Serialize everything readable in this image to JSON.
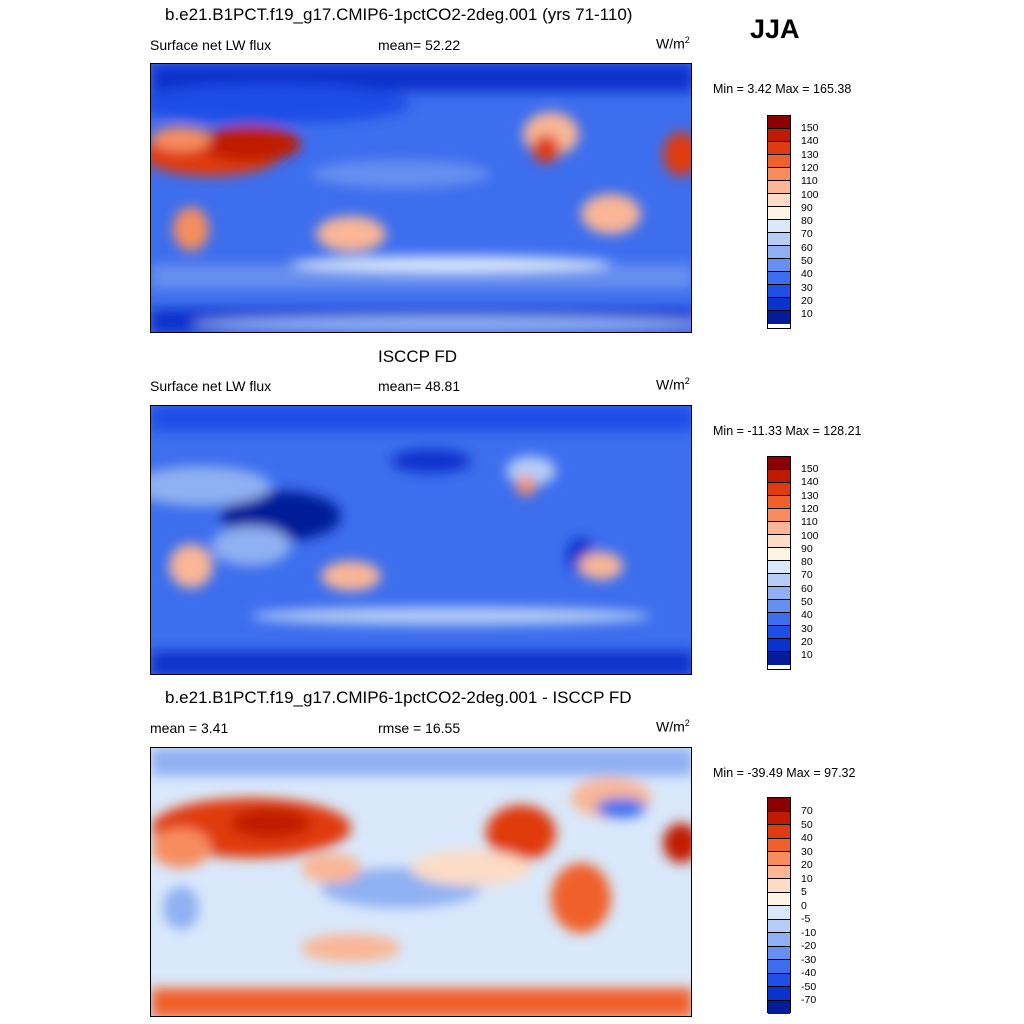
{
  "season": "JJA",
  "units_main": "W/m",
  "units_sup": "2",
  "panels": [
    {
      "title": "b.e21.B1PCT.f19_g17.CMIP6-1pctCO2-2deg.001 (yrs 71-110)",
      "left_label": "Surface net LW flux",
      "mid_label": "mean=  52.22",
      "minmax": "Min =   3.42 Max = 165.38",
      "palette": "abs",
      "colorbar_labels": [
        "150",
        "140",
        "130",
        "120",
        "110",
        "100",
        "90",
        "80",
        "70",
        "60",
        "50",
        "40",
        "30",
        "20",
        "10"
      ],
      "colors": [
        "#8b0000",
        "#c01a00",
        "#e03a10",
        "#f0602a",
        "#f78d5e",
        "#fab696",
        "#fcdcc6",
        "#fff3e6",
        "#d9e8fb",
        "#b5cdf7",
        "#8fb0f2",
        "#6690ef",
        "#3d6eee",
        "#1e4ee6",
        "#0a32cc",
        "#051c99"
      ]
    },
    {
      "title": "ISCCP FD",
      "left_label": "Surface net LW flux",
      "mid_label": "mean=  48.81",
      "minmax": "Min = -11.33 Max = 128.21",
      "palette": "abs",
      "colorbar_labels": [
        "150",
        "140",
        "130",
        "120",
        "110",
        "100",
        "90",
        "80",
        "70",
        "60",
        "50",
        "40",
        "30",
        "20",
        "10"
      ],
      "colors": [
        "#8b0000",
        "#c01a00",
        "#e03a10",
        "#f0602a",
        "#f78d5e",
        "#fab696",
        "#fcdcc6",
        "#fff3e6",
        "#d9e8fb",
        "#b5cdf7",
        "#8fb0f2",
        "#6690ef",
        "#3d6eee",
        "#1e4ee6",
        "#0a32cc",
        "#051c99"
      ]
    },
    {
      "title": "b.e21.B1PCT.f19_g17.CMIP6-1pctCO2-2deg.001 - ISCCP FD",
      "left_label": "mean =   3.41",
      "mid_label": "rmse =  16.55",
      "minmax": "Min = -39.49 Max =  97.32",
      "palette": "diff",
      "colorbar_labels": [
        "70",
        "50",
        "40",
        "30",
        "20",
        "10",
        "5",
        "0",
        "-5",
        "-10",
        "-20",
        "-30",
        "-40",
        "-50",
        "-70"
      ],
      "colors": [
        "#8b0000",
        "#c01a00",
        "#e03a10",
        "#f0602a",
        "#f78d5e",
        "#fab696",
        "#fcdcc6",
        "#fff3e6",
        "#d9e8fb",
        "#b5cdf7",
        "#8fb0f2",
        "#6690ef",
        "#3d6eee",
        "#1e4ee6",
        "#0a32cc",
        "#051c99"
      ]
    }
  ]
}
